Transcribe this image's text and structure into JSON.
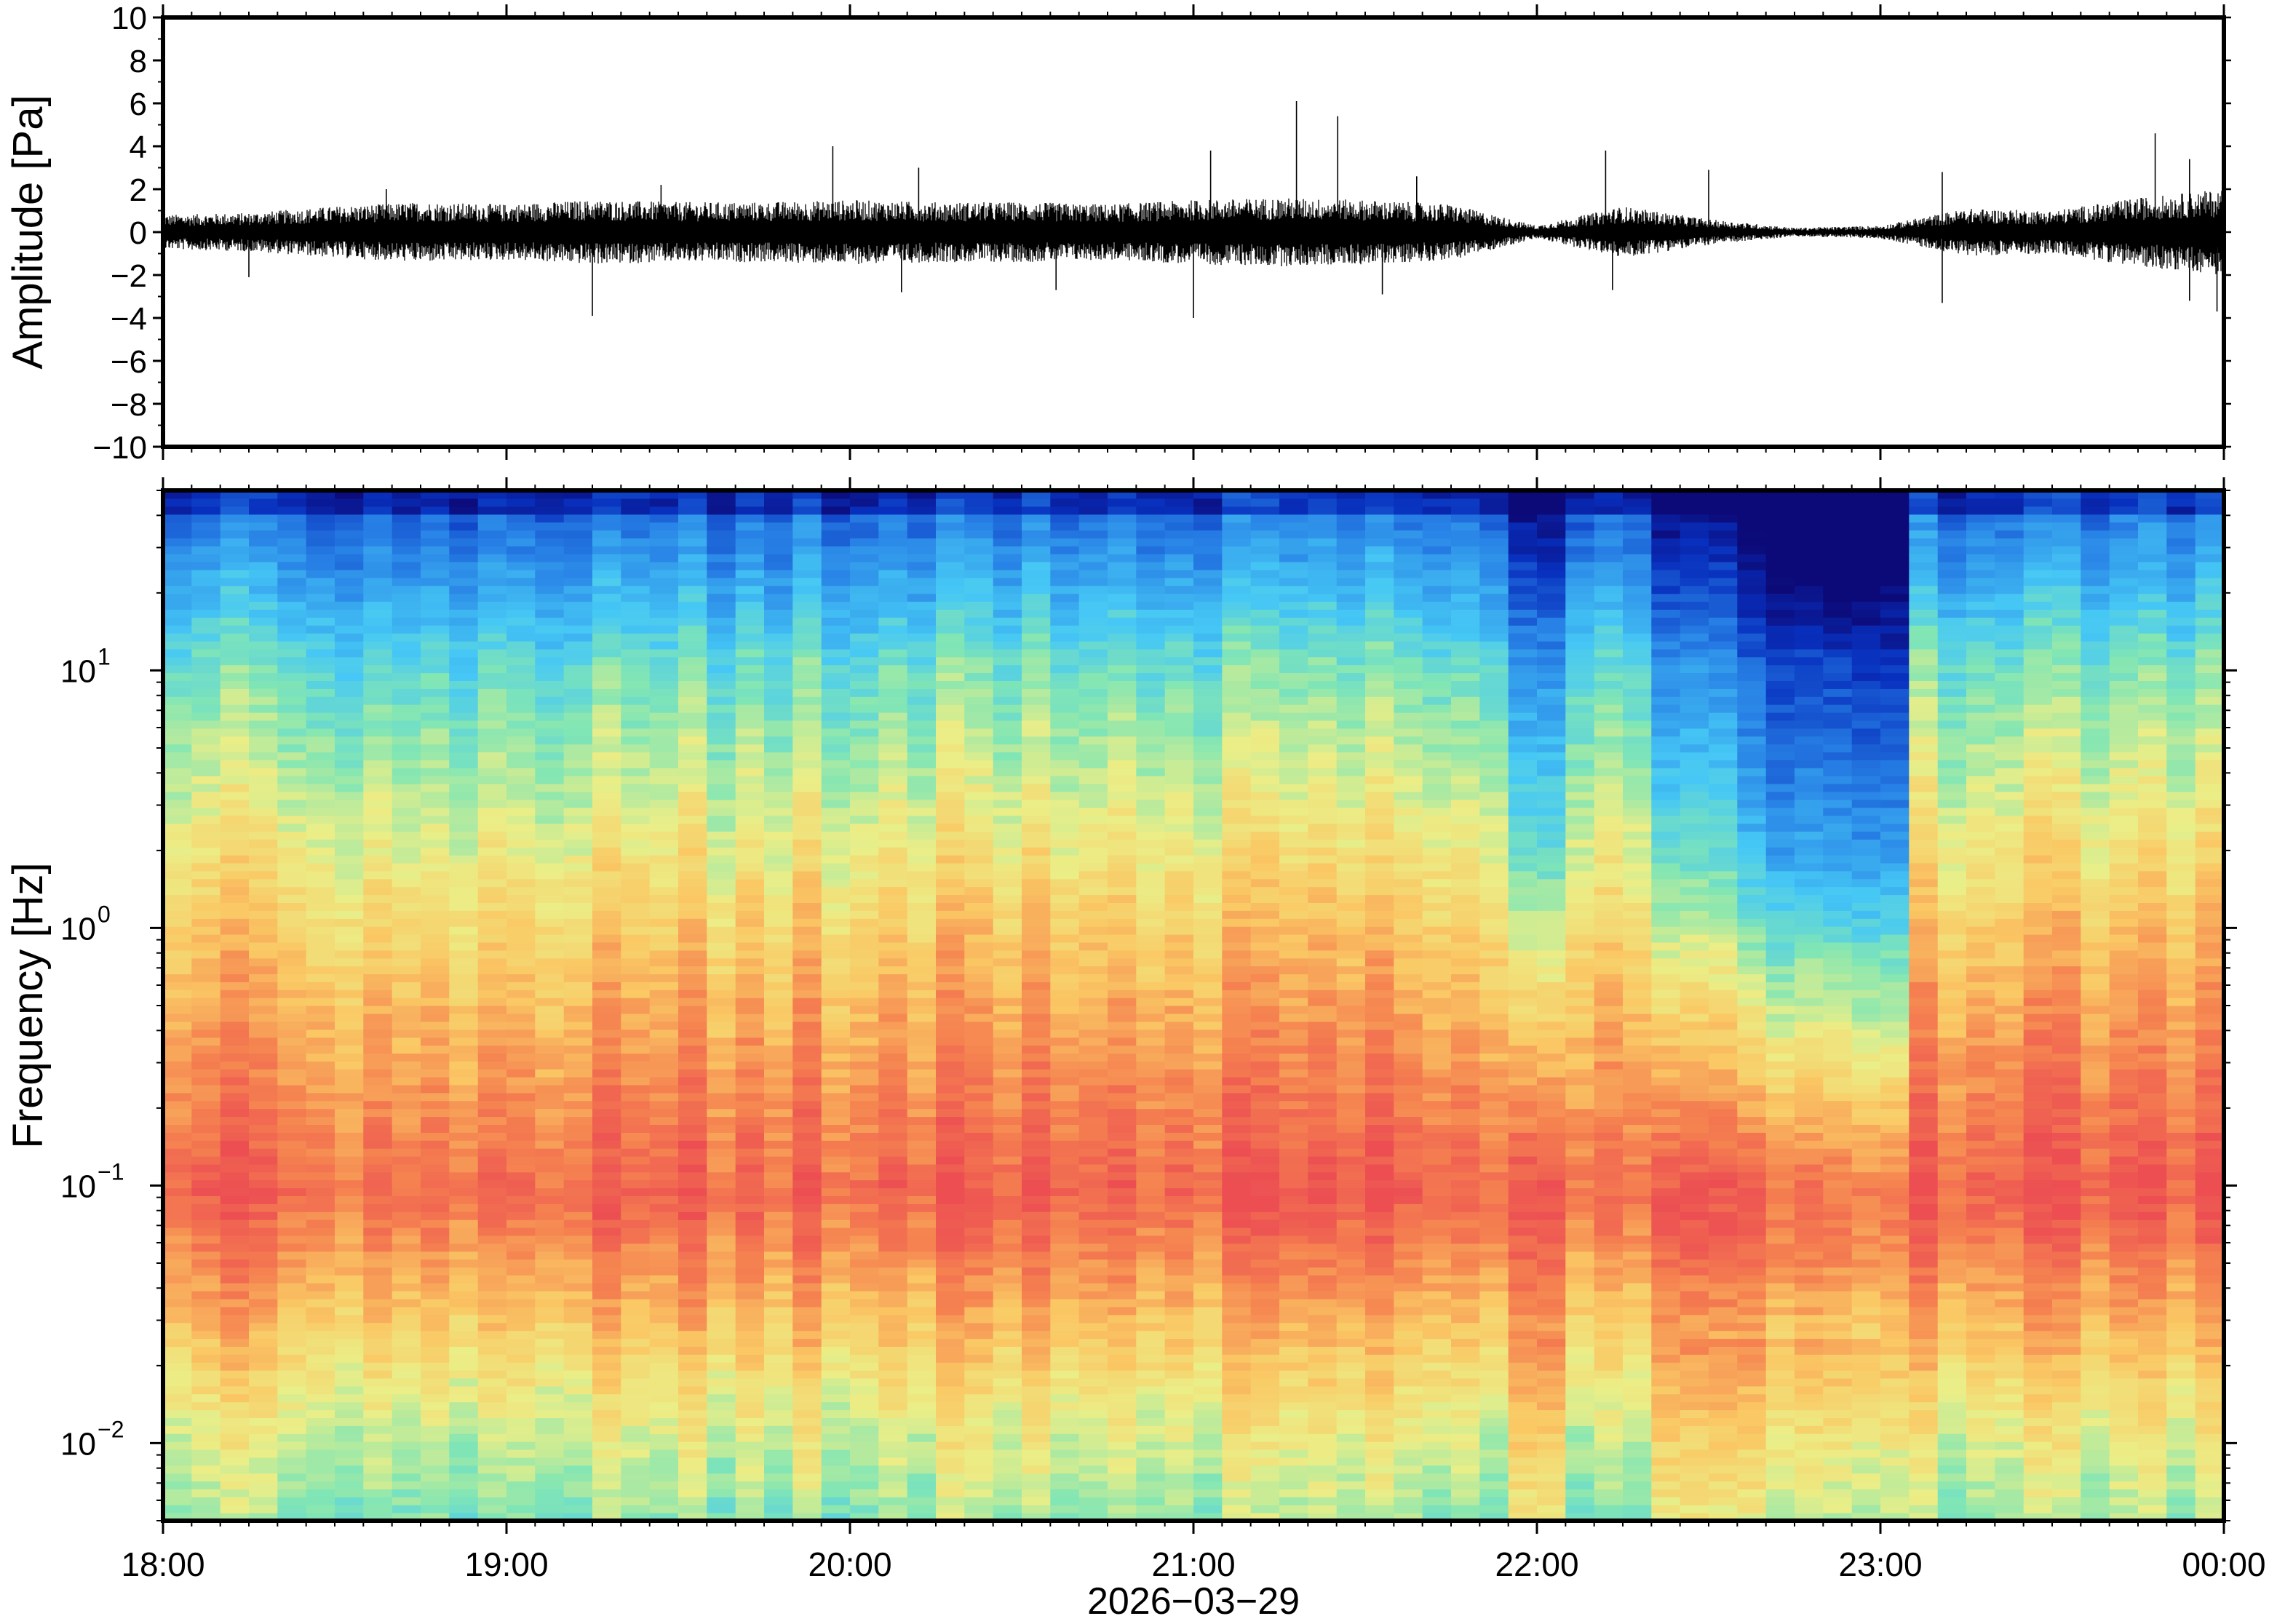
{
  "chart_data": [
    {
      "type": "line",
      "panel": "waveform",
      "ylabel": "Amplitude [Pa]",
      "ylim": [
        -10,
        10
      ],
      "yticks": [
        -10,
        -8,
        -6,
        -4,
        -2,
        0,
        2,
        4,
        6,
        8,
        10
      ],
      "ytick_labels": [
        "−10",
        "−8",
        "−6",
        "−4",
        "−2",
        "0",
        "2",
        "4",
        "6",
        "8",
        "10"
      ],
      "xlim": [
        "18:00",
        "00:00"
      ],
      "x_hours": [
        18,
        18.25,
        18.5,
        18.75,
        19,
        19.25,
        19.5,
        19.75,
        20,
        20.25,
        20.5,
        20.75,
        21,
        21.25,
        21.5,
        21.75,
        22,
        22.25,
        22.5,
        22.75,
        23,
        23.25,
        23.5,
        23.75,
        24
      ],
      "envelope_pos": [
        0.8,
        0.9,
        1.2,
        1.4,
        1.3,
        1.5,
        1.4,
        1.4,
        1.5,
        1.4,
        1.4,
        1.3,
        1.5,
        1.6,
        1.5,
        1.3,
        0.3,
        1.2,
        0.6,
        0.2,
        0.3,
        1.1,
        1.0,
        1.6,
        2.0
      ],
      "envelope_neg": [
        -0.8,
        -0.9,
        -1.2,
        -1.4,
        -1.3,
        -1.5,
        -1.4,
        -1.4,
        -1.5,
        -1.4,
        -1.4,
        -1.3,
        -1.5,
        -1.6,
        -1.5,
        -1.3,
        -0.3,
        -1.2,
        -0.6,
        -0.2,
        -0.3,
        -1.1,
        -1.0,
        -1.6,
        -2.0
      ],
      "spikes": [
        {
          "x": 18.25,
          "y": -2.1
        },
        {
          "x": 18.65,
          "y": 2.0
        },
        {
          "x": 19.25,
          "y": -3.9
        },
        {
          "x": 19.45,
          "y": 2.2
        },
        {
          "x": 19.95,
          "y": 4.0
        },
        {
          "x": 20.2,
          "y": 3.0
        },
        {
          "x": 20.15,
          "y": -2.8
        },
        {
          "x": 20.6,
          "y": -2.7
        },
        {
          "x": 21.0,
          "y": -4.0
        },
        {
          "x": 21.05,
          "y": 3.8
        },
        {
          "x": 21.3,
          "y": 6.1
        },
        {
          "x": 21.42,
          "y": 5.4
        },
        {
          "x": 21.55,
          "y": -2.9
        },
        {
          "x": 21.65,
          "y": 2.6
        },
        {
          "x": 22.2,
          "y": 3.8
        },
        {
          "x": 22.22,
          "y": -2.7
        },
        {
          "x": 22.5,
          "y": 2.9
        },
        {
          "x": 23.18,
          "y": 2.8
        },
        {
          "x": 23.18,
          "y": -3.3
        },
        {
          "x": 23.8,
          "y": 4.6
        },
        {
          "x": 23.9,
          "y": 3.4
        },
        {
          "x": 23.9,
          "y": -3.2
        },
        {
          "x": 23.98,
          "y": -3.7
        }
      ]
    },
    {
      "type": "heatmap",
      "panel": "spectrogram",
      "ylabel": "Frequency [Hz]",
      "yscale": "log",
      "ylim": [
        0.005,
        50
      ],
      "yticks": [
        0.01,
        0.1,
        1,
        10
      ],
      "ytick_labels": [
        {
          "base": "10",
          "exp": "−2"
        },
        {
          "base": "10",
          "exp": "−1"
        },
        {
          "base": "10",
          "exp": "0"
        },
        {
          "base": "10",
          "exp": "1"
        }
      ],
      "colormap": "rainbow (blue = low power, red = high power)",
      "xlim": [
        "18:00",
        "00:00"
      ],
      "xtick_labels": [
        "18:00",
        "19:00",
        "20:00",
        "21:00",
        "22:00",
        "23:00",
        "00:00"
      ],
      "xlabel": "2026−03−29",
      "quiet_intervals": [
        [
          21.95,
          22.1
        ],
        [
          22.3,
          22.55
        ],
        [
          22.55,
          23.05
        ]
      ]
    }
  ]
}
